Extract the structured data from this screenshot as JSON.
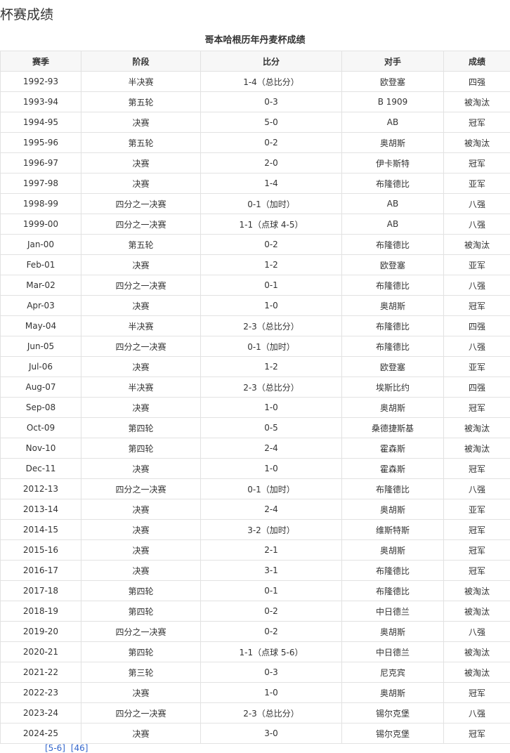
{
  "section_title": "杯赛成绩",
  "table": {
    "caption": "哥本哈根历年丹麦杯成绩",
    "headers": [
      "赛季",
      "阶段",
      "比分",
      "对手",
      "成绩"
    ],
    "rows": [
      [
        "1992-93",
        "半决赛",
        "1-4（总比分）",
        "欧登塞",
        "四强"
      ],
      [
        "1993-94",
        "第五轮",
        "0-3",
        "B 1909",
        "被淘汰"
      ],
      [
        "1994-95",
        "决赛",
        "5-0",
        "AB",
        "冠军"
      ],
      [
        "1995-96",
        "第五轮",
        "0-2",
        "奥胡斯",
        "被淘汰"
      ],
      [
        "1996-97",
        "决赛",
        "2-0",
        "伊卡斯特",
        "冠军"
      ],
      [
        "1997-98",
        "决赛",
        "1-4",
        "布隆德比",
        "亚军"
      ],
      [
        "1998-99",
        "四分之一决赛",
        "0-1（加时）",
        "AB",
        "八强"
      ],
      [
        "1999-00",
        "四分之一决赛",
        "1-1（点球 4-5）",
        "AB",
        "八强"
      ],
      [
        "Jan-00",
        "第五轮",
        "0-2",
        "布隆德比",
        "被淘汰"
      ],
      [
        "Feb-01",
        "决赛",
        "1-2",
        "欧登塞",
        "亚军"
      ],
      [
        "Mar-02",
        "四分之一决赛",
        "0-1",
        "布隆德比",
        "八强"
      ],
      [
        "Apr-03",
        "决赛",
        "1-0",
        "奥胡斯",
        "冠军"
      ],
      [
        "May-04",
        "半决赛",
        "2-3（总比分）",
        "布隆德比",
        "四强"
      ],
      [
        "Jun-05",
        "四分之一决赛",
        "0-1（加时）",
        "布隆德比",
        "八强"
      ],
      [
        "Jul-06",
        "决赛",
        "1-2",
        "欧登塞",
        "亚军"
      ],
      [
        "Aug-07",
        "半决赛",
        "2-3（总比分）",
        "埃斯比约",
        "四强"
      ],
      [
        "Sep-08",
        "决赛",
        "1-0",
        "奥胡斯",
        "冠军"
      ],
      [
        "Oct-09",
        "第四轮",
        "0-5",
        "桑德捷斯基",
        "被淘汰"
      ],
      [
        "Nov-10",
        "第四轮",
        "2-4",
        "霍森斯",
        "被淘汰"
      ],
      [
        "Dec-11",
        "决赛",
        "1-0",
        "霍森斯",
        "冠军"
      ],
      [
        "2012-13",
        "四分之一决赛",
        "0-1（加时）",
        "布隆德比",
        "八强"
      ],
      [
        "2013-14",
        "决赛",
        "2-4",
        "奥胡斯",
        "亚军"
      ],
      [
        "2014-15",
        "决赛",
        "3-2（加时）",
        "维斯特斯",
        "冠军"
      ],
      [
        "2015-16",
        "决赛",
        "2-1",
        "奥胡斯",
        "冠军"
      ],
      [
        "2016-17",
        "决赛",
        "3-1",
        "布隆德比",
        "冠军"
      ],
      [
        "2017-18",
        "第四轮",
        "0-1",
        "布隆德比",
        "被淘汰"
      ],
      [
        "2018-19",
        "第四轮",
        "0-2",
        "中日德兰",
        "被淘汰"
      ],
      [
        "2019-20",
        "四分之一决赛",
        "0-2",
        "奥胡斯",
        "八强"
      ],
      [
        "2020-21",
        "第四轮",
        "1-1（点球 5-6）",
        "中日德兰",
        "被淘汰"
      ],
      [
        "2021-22",
        "第三轮",
        "0-3",
        "尼克宾",
        "被淘汰"
      ],
      [
        "2022-23",
        "决赛",
        "1-0",
        "奥胡斯",
        "冠军"
      ],
      [
        "2023-24",
        "四分之一决赛",
        "2-3（总比分）",
        "锡尔克堡",
        "八强"
      ],
      [
        "2024-25",
        "决赛",
        "3-0",
        "锡尔克堡",
        "冠军"
      ]
    ]
  },
  "footnote": {
    "refs": [
      "[5-6]",
      "[46]"
    ]
  }
}
